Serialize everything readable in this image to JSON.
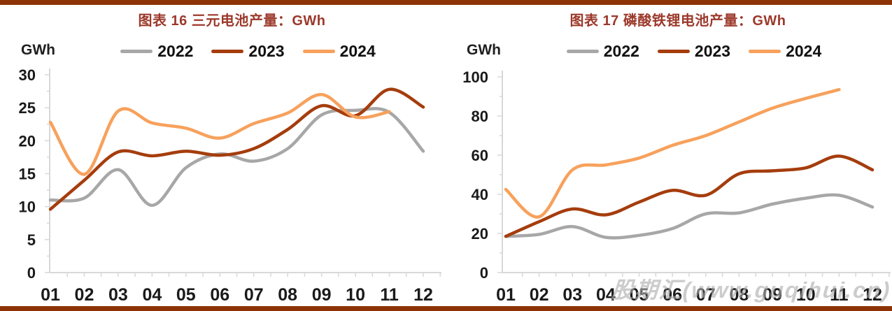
{
  "page": {
    "watermark": "股期汇(www.guqihui.cn)"
  },
  "colors": {
    "2022": "#A7A7A7",
    "2023": "#A53D0D",
    "2024": "#F7A15C",
    "title": "#9C392B",
    "bar": "#8C3406",
    "axis": "#D8D8D8",
    "tick_text": "#1A1A1A",
    "watermark": "#ADADAD"
  },
  "chart_data": [
    {
      "type": "line",
      "title": "图表 16 三元电池产量：GWh",
      "ylabel": "GWh",
      "xlabel": "",
      "categories": [
        "01",
        "02",
        "03",
        "04",
        "05",
        "06",
        "07",
        "08",
        "09",
        "10",
        "11",
        "12"
      ],
      "ylim": [
        0,
        30
      ],
      "ytick_step": 5,
      "grid": false,
      "legend_position": "top",
      "legend": [
        "2022",
        "2023",
        "2024"
      ],
      "series": [
        {
          "name": "2022",
          "values": [
            11.0,
            11.3,
            15.6,
            10.2,
            15.9,
            18.0,
            16.9,
            18.8,
            23.9,
            24.6,
            24.3,
            18.4
          ]
        },
        {
          "name": "2023",
          "values": [
            9.6,
            14.0,
            18.3,
            17.7,
            18.4,
            17.8,
            18.8,
            21.7,
            25.3,
            23.8,
            27.8,
            25.1
          ]
        },
        {
          "name": "2024",
          "values": [
            22.8,
            14.9,
            24.5,
            22.7,
            21.9,
            20.4,
            22.6,
            24.2,
            27.0,
            23.6,
            24.4,
            null
          ]
        }
      ]
    },
    {
      "type": "line",
      "title": "图表 17 磷酸铁锂电池产量：GWh",
      "ylabel": "GWh",
      "xlabel": "",
      "categories": [
        "01",
        "02",
        "03",
        "04",
        "05",
        "06",
        "07",
        "08",
        "09",
        "10",
        "11",
        "12"
      ],
      "ylim": [
        0,
        100
      ],
      "ytick_step": 20,
      "grid": false,
      "legend_position": "top",
      "legend": [
        "2022",
        "2023",
        "2024"
      ],
      "series": [
        {
          "name": "2022",
          "values": [
            18.5,
            19.5,
            23.5,
            18.0,
            19.0,
            22.5,
            30.0,
            30.5,
            35.0,
            38.0,
            39.5,
            33.5
          ]
        },
        {
          "name": "2023",
          "values": [
            18.5,
            26.0,
            32.5,
            29.5,
            36.0,
            42.0,
            39.5,
            50.5,
            52.0,
            53.5,
            59.5,
            52.5
          ]
        },
        {
          "name": "2024",
          "values": [
            42.5,
            28.5,
            52.5,
            55.0,
            58.5,
            65.0,
            70.0,
            77.0,
            84.0,
            89.0,
            93.5,
            null
          ]
        }
      ]
    }
  ]
}
